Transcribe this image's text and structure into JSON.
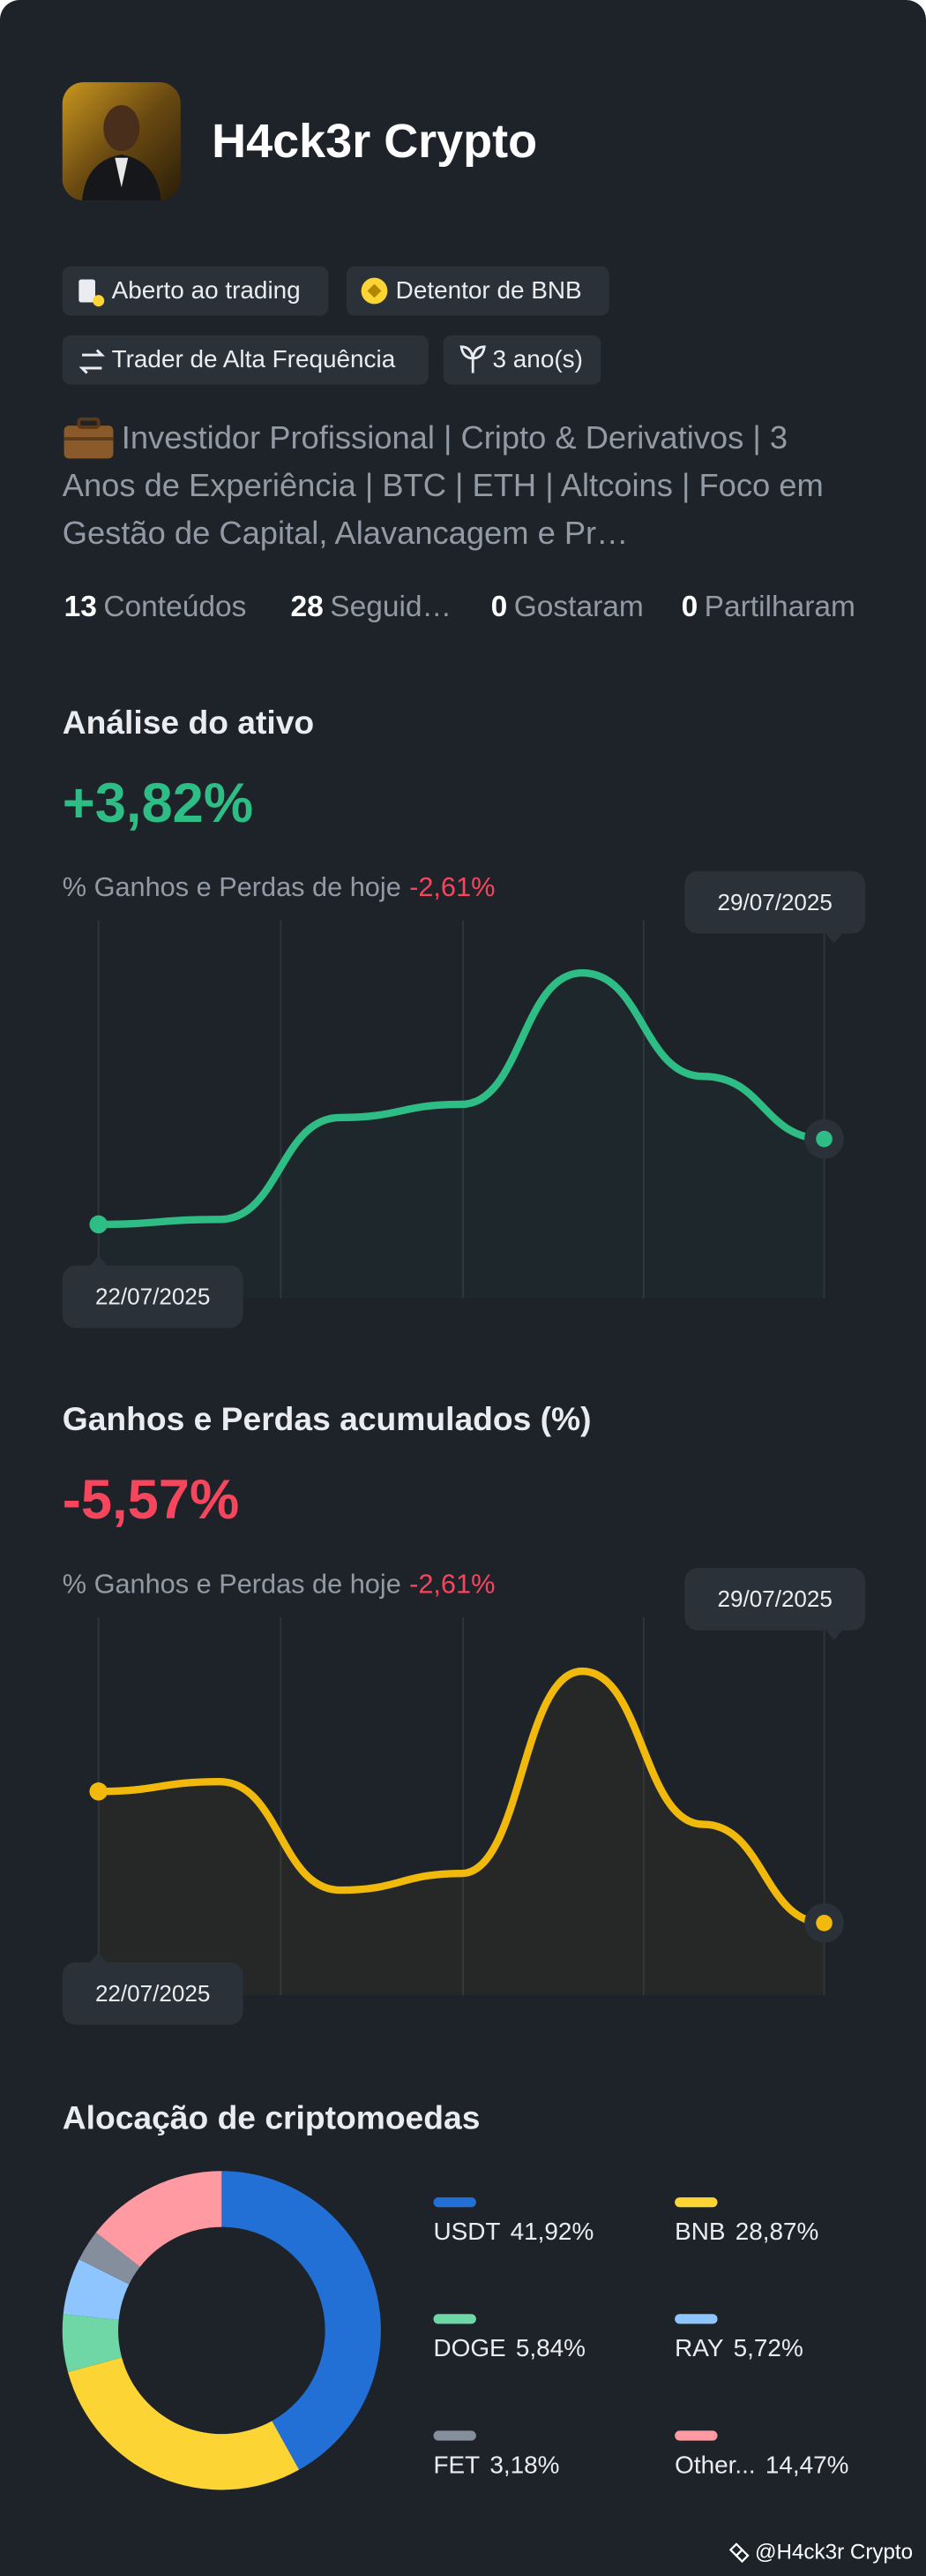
{
  "profile": {
    "name": "H4ck3r Crypto",
    "tags": [
      "Aberto ao trading",
      "Detentor de BNB",
      "Trader de Alta Frequência",
      "3 ano(s)"
    ],
    "bio": "Investidor Profissional | Cripto & Derivativos | 3 Anos de Experiência | BTC | ETH | Altcoins | Foco em Gestão de Capital, Alavancagem e Pr…",
    "stats": [
      {
        "value": 13,
        "label": "Conteúdos"
      },
      {
        "value": 28,
        "label": "Seguid…"
      },
      {
        "value": 0,
        "label": "Gostaram"
      },
      {
        "value": 0,
        "label": "Partilharam"
      }
    ]
  },
  "chart_data": [
    {
      "type": "line",
      "title": "Análise do ativo",
      "headline": "+3,82%",
      "headline_color": "#2ebd85",
      "subtitle": "% Ganhos e Perdas de hoje",
      "today": "-2,61%",
      "categories": [
        "22/07/2025",
        null,
        null,
        null,
        null,
        null,
        "29/07/2025"
      ],
      "values": [
        0,
        0.22,
        4.78,
        5.37,
        11.25,
        6.62,
        3.82
      ],
      "color": "#2ebd85",
      "ylim": [
        -3.31,
        13.6
      ]
    },
    {
      "type": "line",
      "title": "Ganhos e Perdas acumulados (%)",
      "headline": "-5,57%",
      "headline_color": "#f6465d",
      "subtitle": "% Ganhos e Perdas de hoje",
      "today": "-2,61%",
      "categories": [
        "22/07/2025",
        null,
        null,
        null,
        null,
        null,
        "29/07/2025"
      ],
      "values": [
        -2.09,
        -1.83,
        -4.7,
        -4.26,
        1.09,
        -2.96,
        -5.57
      ],
      "color": "#f0b90b",
      "ylim": [
        -7.48,
        2.52
      ]
    },
    {
      "type": "pie",
      "title": "Alocação de criptomoedas",
      "categories": [
        "USDT",
        "BNB",
        "DOGE",
        "RAY",
        "FET",
        "Other..."
      ],
      "values": [
        41.92,
        28.87,
        5.84,
        5.72,
        3.18,
        14.47
      ],
      "value_labels": [
        "41,92%",
        "28,87%",
        "5,84%",
        "5,72%",
        "3,18%",
        "14,47%"
      ],
      "colors": [
        "#2270d6",
        "#fcd535",
        "#6fd6a6",
        "#8ec5ff",
        "#848e9c",
        "#ff9aa2"
      ]
    }
  ],
  "footer": "@H4ck3r Crypto"
}
